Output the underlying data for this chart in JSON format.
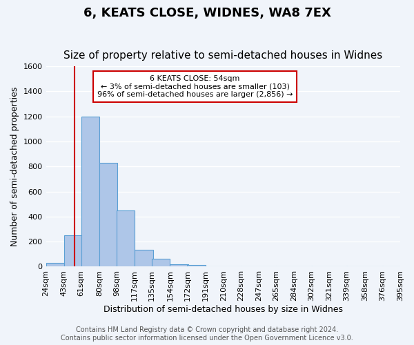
{
  "title": "6, KEATS CLOSE, WIDNES, WA8 7EX",
  "subtitle": "Size of property relative to semi-detached houses in Widnes",
  "xlabel": "Distribution of semi-detached houses by size in Widnes",
  "ylabel": "Number of semi-detached properties",
  "bar_left_edges": [
    24,
    43,
    61,
    80,
    98,
    117,
    135,
    154,
    172,
    191,
    210,
    228,
    247,
    265,
    284,
    302,
    321,
    339,
    358,
    376
  ],
  "bar_heights": [
    30,
    250,
    1200,
    830,
    450,
    135,
    65,
    20,
    13,
    0,
    0,
    5,
    0,
    0,
    0,
    0,
    0,
    0,
    0,
    0
  ],
  "bin_width": 19,
  "bar_color": "#aec6e8",
  "bar_edge_color": "#5a9fd4",
  "tick_labels": [
    "24sqm",
    "43sqm",
    "61sqm",
    "80sqm",
    "98sqm",
    "117sqm",
    "135sqm",
    "154sqm",
    "172sqm",
    "191sqm",
    "210sqm",
    "228sqm",
    "247sqm",
    "265sqm",
    "284sqm",
    "302sqm",
    "321sqm",
    "339sqm",
    "358sqm",
    "376sqm",
    "395sqm"
  ],
  "ylim": [
    0,
    1600
  ],
  "yticks": [
    0,
    200,
    400,
    600,
    800,
    1000,
    1200,
    1400,
    1600
  ],
  "vline_x": 54,
  "vline_color": "#cc0000",
  "annotation_title": "6 KEATS CLOSE: 54sqm",
  "annotation_line1": "← 3% of semi-detached houses are smaller (103)",
  "annotation_line2": "96% of semi-detached houses are larger (2,856) →",
  "annotation_box_color": "#ffffff",
  "annotation_border_color": "#cc0000",
  "footer_line1": "Contains HM Land Registry data © Crown copyright and database right 2024.",
  "footer_line2": "Contains public sector information licensed under the Open Government Licence v3.0.",
  "bg_color": "#f0f4fa",
  "plot_bg_color": "#f0f4fa",
  "grid_color": "#ffffff",
  "title_fontsize": 13,
  "subtitle_fontsize": 11,
  "axis_label_fontsize": 9,
  "tick_fontsize": 8,
  "footer_fontsize": 7
}
